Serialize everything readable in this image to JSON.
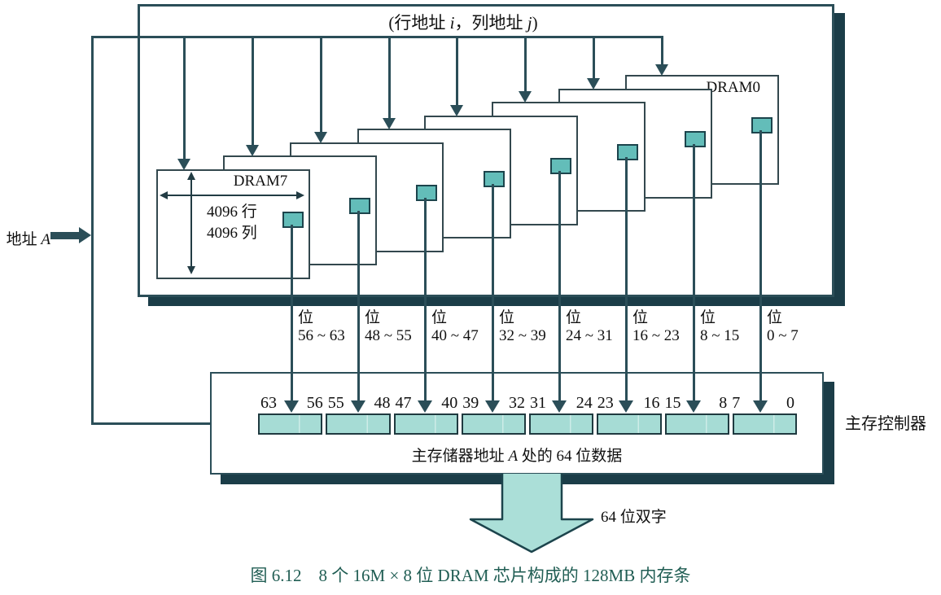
{
  "top_bus_label": {
    "pre": "(行地址 ",
    "var_i": "i",
    "mid": "，列地址 ",
    "var_j": "j",
    "post": ")"
  },
  "address_label": {
    "pre": "地址 ",
    "var": "A"
  },
  "module": {
    "chip_count": 8,
    "front_chip": {
      "label": "DRAM7",
      "rows": "4096 行",
      "cols": "4096 列"
    },
    "back_chip": {
      "label": "DRAM0"
    }
  },
  "bit_groups": [
    {
      "prefix": "位",
      "range": "56 ~ 63"
    },
    {
      "prefix": "位",
      "range": "48 ~ 55"
    },
    {
      "prefix": "位",
      "range": "40 ~ 47"
    },
    {
      "prefix": "位",
      "range": "32 ~ 39"
    },
    {
      "prefix": "位",
      "range": "24 ~ 31"
    },
    {
      "prefix": "位",
      "range": "16 ~ 23"
    },
    {
      "prefix": "位",
      "range": "8 ~ 15"
    },
    {
      "prefix": "位",
      "range": "0 ~ 7"
    }
  ],
  "register": {
    "segments": [
      {
        "hi": "63",
        "lo": "56"
      },
      {
        "hi": "55",
        "lo": "48"
      },
      {
        "hi": "47",
        "lo": "40"
      },
      {
        "hi": "39",
        "lo": "32"
      },
      {
        "hi": "31",
        "lo": "24"
      },
      {
        "hi": "23",
        "lo": "16"
      },
      {
        "hi": "15",
        "lo": "8"
      },
      {
        "hi": "7",
        "lo": "0"
      }
    ],
    "label": {
      "pre": "主存储器地址 ",
      "var": "A",
      "post": " 处的 64 位数据"
    }
  },
  "controller_label": "主存控制器",
  "output_arrow_label": "64 位双字",
  "caption": "图 6.12　8 个 16M × 8 位 DRAM 芯片构成的 128MB 内存条",
  "colors": {
    "line": "#2b4e58",
    "shadow": "#1b3d48",
    "cell_fill": "#63bdb9",
    "register_fill": "#a6dcd5",
    "big_arrow_fill": "#abdfd8",
    "caption_text": "#215e54"
  }
}
